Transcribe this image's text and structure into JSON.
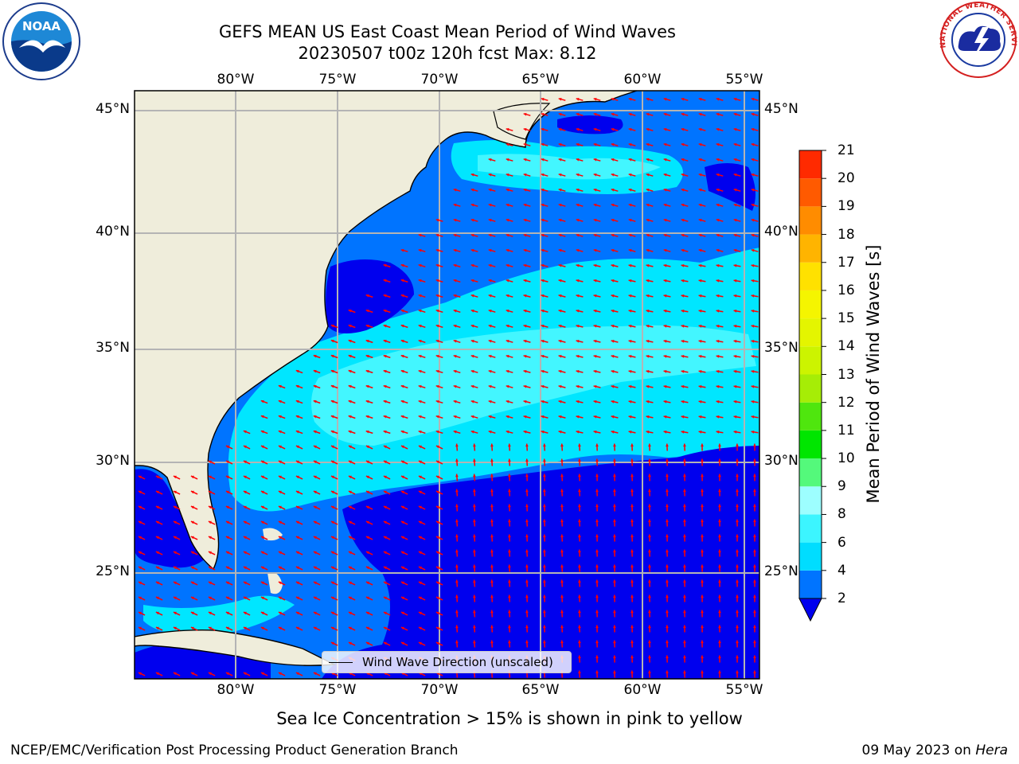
{
  "header": {
    "title": "GEFS MEAN US East Coast Mean Period of Wind Waves",
    "subtitle": "20230507 t00z 120h fcst   Max: 8.12"
  },
  "map": {
    "longitude_labels": [
      "80°W",
      "75°W",
      "70°W",
      "65°W",
      "60°W",
      "55°W"
    ],
    "latitude_labels": [
      "45°N",
      "40°N",
      "35°N",
      "30°N",
      "25°N"
    ],
    "extent": {
      "lon_min": -85,
      "lon_max": -54.3,
      "lat_min": 20.5,
      "lat_max": 45.8
    },
    "legend_label": "Wind Wave Direction (unscaled)",
    "land_color": "#efeddb",
    "arrow_color": "#ff0000",
    "grid_color": "#b4b4b4"
  },
  "colorbar": {
    "label": "Mean Period of Wind Waves [s]",
    "ticks": [
      "2",
      "4",
      "6",
      "8",
      "9",
      "10",
      "11",
      "12",
      "13",
      "14",
      "15",
      "16",
      "17",
      "18",
      "19",
      "20",
      "21"
    ],
    "colors": [
      "#0074ff",
      "#00ddff",
      "#3cf5ff",
      "#9dfeff",
      "#54f97b",
      "#00e600",
      "#4fe60e",
      "#a6ed06",
      "#ccf400",
      "#e4f500",
      "#f5f500",
      "#ffe100",
      "#ffb400",
      "#ff8c00",
      "#ff5a00",
      "#ff2a00",
      "#ff0000"
    ],
    "under_color": "#0000ee"
  },
  "notes": {
    "ice": "Sea Ice Concentration > 15% is shown in pink to yellow"
  },
  "footer": {
    "left": "NCEP/EMC/Verification Post Processing Product Generation Branch",
    "date": "09 May 2023 on ",
    "machine": "Hera"
  },
  "logos": {
    "noaa_text": "NOAA",
    "nws_text": "NATIONAL WEATHER SERVICE"
  }
}
